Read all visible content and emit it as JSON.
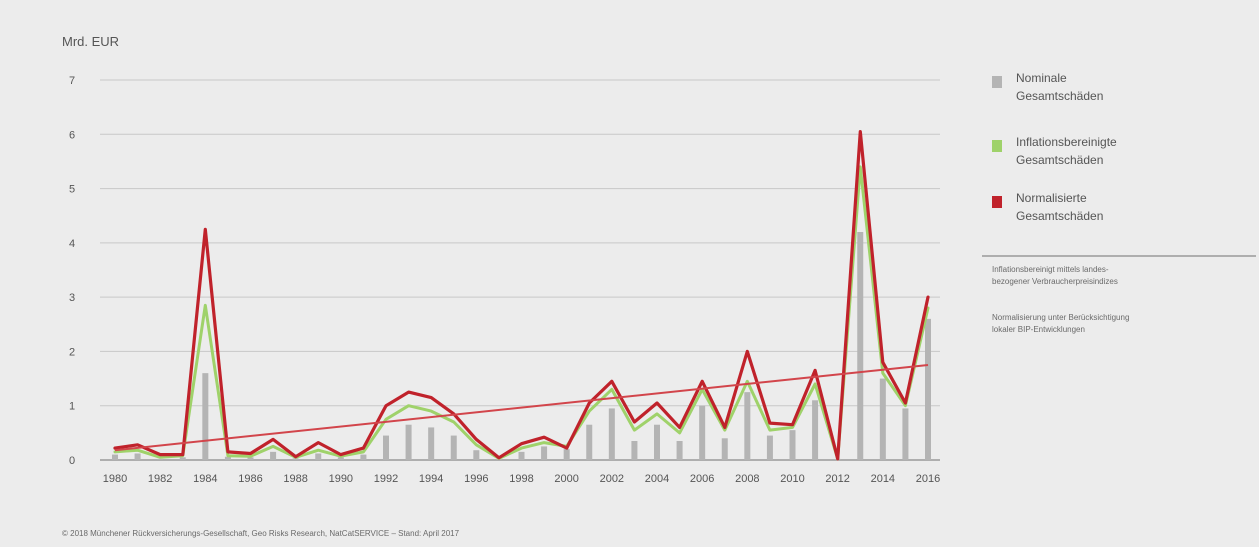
{
  "chart_data": {
    "type": "bar",
    "ylabel": "Mrd. EUR",
    "ylim": [
      0,
      7
    ],
    "yticks": [
      "0",
      "1",
      "2",
      "3",
      "4",
      "5",
      "6",
      "7"
    ],
    "x": [
      1980,
      1981,
      1982,
      1983,
      1984,
      1985,
      1986,
      1987,
      1988,
      1989,
      1990,
      1991,
      1992,
      1993,
      1994,
      1995,
      1996,
      1997,
      1998,
      1999,
      2000,
      2001,
      2002,
      2003,
      2004,
      2005,
      2006,
      2007,
      2008,
      2009,
      2010,
      2011,
      2012,
      2013,
      2014,
      2015,
      2016
    ],
    "xtick_labels": [
      "1980",
      "1982",
      "1984",
      "1986",
      "1988",
      "1990",
      "1992",
      "1994",
      "1996",
      "1998",
      "2000",
      "2002",
      "2004",
      "2006",
      "2008",
      "2010",
      "2012",
      "2014",
      "2016"
    ],
    "series": [
      {
        "name": "Nominale Gesamtschäden",
        "kind": "bar",
        "color": "#b4b4b4",
        "values": [
          0.1,
          0.12,
          0.02,
          0.05,
          1.6,
          0.06,
          0.05,
          0.15,
          0.03,
          0.12,
          0.05,
          0.1,
          0.45,
          0.65,
          0.6,
          0.45,
          0.18,
          0.02,
          0.15,
          0.25,
          0.2,
          0.65,
          0.95,
          0.35,
          0.65,
          0.35,
          1.0,
          0.4,
          1.25,
          0.45,
          0.55,
          1.1,
          0.02,
          4.2,
          1.5,
          0.95,
          2.6
        ]
      },
      {
        "name": "Inflationsbereinigte Gesamtschäden",
        "kind": "line",
        "color": "#9fd26a",
        "values": [
          0.15,
          0.18,
          0.05,
          0.08,
          2.85,
          0.08,
          0.07,
          0.25,
          0.05,
          0.18,
          0.07,
          0.15,
          0.75,
          1.0,
          0.9,
          0.7,
          0.28,
          0.03,
          0.22,
          0.32,
          0.25,
          0.9,
          1.3,
          0.55,
          0.85,
          0.5,
          1.3,
          0.55,
          1.45,
          0.55,
          0.6,
          1.4,
          0.02,
          5.4,
          1.6,
          1.0,
          2.8
        ]
      },
      {
        "name": "Normalisierte Gesamtschäden",
        "kind": "line",
        "color": "#c0222b",
        "values": [
          0.22,
          0.28,
          0.1,
          0.1,
          4.25,
          0.15,
          0.12,
          0.38,
          0.06,
          0.32,
          0.1,
          0.22,
          1.0,
          1.25,
          1.15,
          0.85,
          0.38,
          0.04,
          0.3,
          0.42,
          0.22,
          1.05,
          1.45,
          0.7,
          1.05,
          0.6,
          1.45,
          0.6,
          2.0,
          0.68,
          0.65,
          1.65,
          0.02,
          6.05,
          1.8,
          1.05,
          3.0
        ]
      }
    ],
    "trend": {
      "color": "#d2454b",
      "start": [
        1980,
        0.18
      ],
      "end": [
        2016,
        1.75
      ]
    },
    "grid": true,
    "legend_position": "right"
  },
  "notes": [
    "Inflationsbereinigt mittels landes-",
    "bezogener Verbraucherpreisindizes",
    "Normalisierung unter Berücksichtigung",
    "lokaler BIP-Entwicklungen"
  ],
  "source": "© 2018 Münchener Rückversicherungs-Gesellschaft, Geo Risks Research, NatCatSERVICE – Stand: April 2017",
  "colors": {
    "background": "#ececec",
    "grid": "#c8c8c8",
    "axis": "#888888"
  }
}
